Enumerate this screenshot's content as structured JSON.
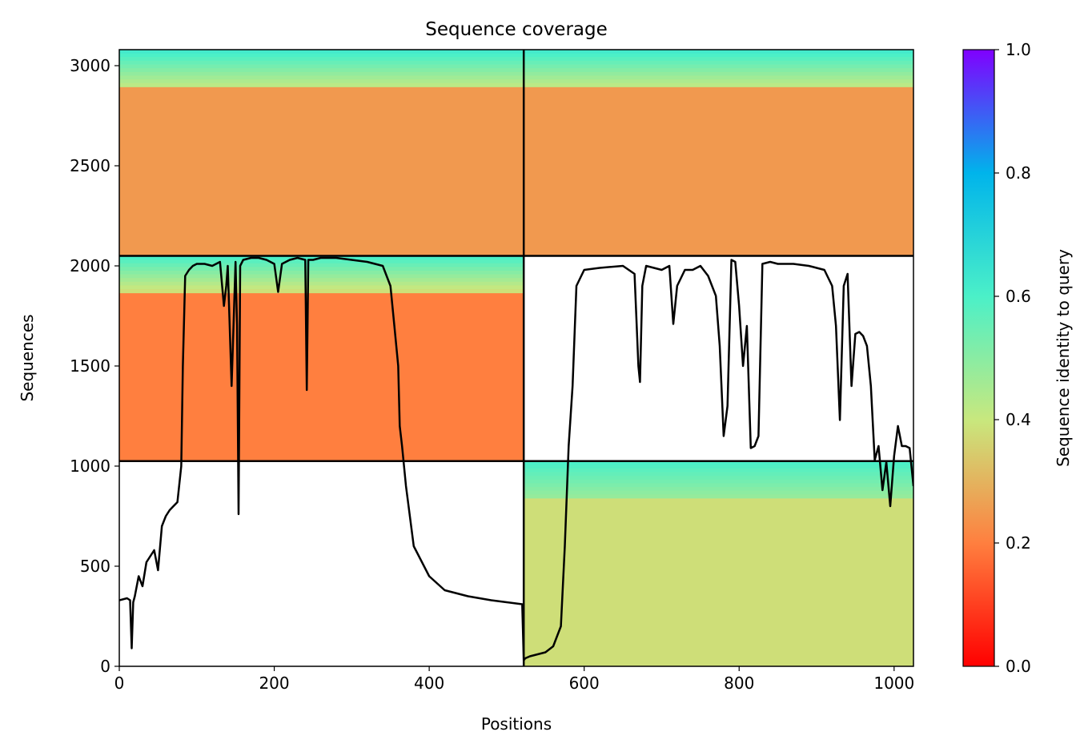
{
  "chart_data": {
    "type": "heatmap",
    "title": "Sequence coverage",
    "xlabel": "Positions",
    "ylabel": "Sequences",
    "xlim": [
      0,
      1025
    ],
    "ylim": [
      0,
      3080
    ],
    "xticks": [
      0,
      200,
      400,
      600,
      800,
      1000
    ],
    "yticks": [
      0,
      500,
      1000,
      1500,
      2000,
      2500,
      3000
    ],
    "colorbar": {
      "label": "Sequence identity to query",
      "colormap": "rainbow_r",
      "range": [
        0.0,
        1.0
      ],
      "ticks": [
        0.0,
        0.2,
        0.4,
        0.6,
        0.8,
        1.0
      ],
      "tick_labels": [
        "0.0",
        "0.2",
        "0.4",
        "0.6",
        "0.8",
        "1.0"
      ],
      "stops": [
        "#ff0000",
        "#ff7f3f",
        "#c8e87e",
        "#4bf0c8",
        "#00b4eb",
        "#8000ff"
      ]
    },
    "block_boundaries": {
      "x_chain_break": 522,
      "y_breaks": [
        1025,
        2050
      ]
    },
    "coverage_blocks": [
      {
        "x": [
          0,
          522
        ],
        "y": [
          2050,
          3080
        ],
        "identity": 0.25,
        "top_identity": 0.62
      },
      {
        "x": [
          522,
          1025
        ],
        "y": [
          2050,
          3080
        ],
        "identity": 0.25,
        "top_identity": 0.62
      },
      {
        "x": [
          0,
          522
        ],
        "y": [
          1025,
          2050
        ],
        "identity": 0.2,
        "top_identity": 0.6
      },
      {
        "x": [
          522,
          1025
        ],
        "y": [
          0,
          1025
        ],
        "identity": 0.38,
        "top_identity": 0.6
      }
    ],
    "series": [
      {
        "type": "line",
        "color": "#000000",
        "x": [
          0,
          10,
          14,
          16,
          18,
          20,
          25,
          30,
          35,
          45,
          50,
          55,
          60,
          65,
          70,
          75,
          80,
          82,
          85,
          90,
          95,
          100,
          110,
          120,
          130,
          135,
          138,
          140,
          145,
          150,
          152,
          154,
          156,
          160,
          170,
          180,
          190,
          200,
          205,
          210,
          220,
          230,
          240,
          242,
          244,
          250,
          260,
          280,
          300,
          320,
          340,
          350,
          355,
          360,
          362,
          365,
          370,
          380,
          400,
          420,
          450,
          480,
          500,
          520,
          522,
          524,
          530,
          540,
          550,
          560,
          570,
          575,
          580,
          585,
          590,
          600,
          620,
          650,
          665,
          670,
          672,
          675,
          680,
          690,
          700,
          710,
          715,
          720,
          730,
          740,
          750,
          760,
          770,
          775,
          780,
          785,
          790,
          795,
          800,
          805,
          810,
          815,
          820,
          825,
          830,
          840,
          850,
          870,
          890,
          900,
          910,
          920,
          925,
          930,
          935,
          940,
          945,
          950,
          955,
          960,
          965,
          970,
          975,
          980,
          985,
          990,
          995,
          1000,
          1005,
          1010,
          1015,
          1020,
          1025
        ],
        "y": [
          330,
          340,
          330,
          90,
          320,
          350,
          450,
          400,
          520,
          580,
          480,
          700,
          750,
          780,
          800,
          820,
          1000,
          1500,
          1950,
          1980,
          2000,
          2010,
          2010,
          2000,
          2020,
          1800,
          1900,
          2000,
          1400,
          2020,
          1700,
          760,
          2000,
          2030,
          2040,
          2040,
          2030,
          2010,
          1870,
          2010,
          2030,
          2040,
          2030,
          1380,
          2030,
          2030,
          2040,
          2040,
          2030,
          2020,
          2000,
          1900,
          1700,
          1500,
          1200,
          1100,
          900,
          600,
          450,
          380,
          350,
          330,
          320,
          310,
          30,
          40,
          50,
          60,
          70,
          100,
          200,
          600,
          1100,
          1400,
          1900,
          1980,
          1990,
          2000,
          1960,
          1500,
          1420,
          1900,
          2000,
          1990,
          1980,
          2000,
          1710,
          1900,
          1980,
          1980,
          2000,
          1950,
          1850,
          1600,
          1150,
          1300,
          2030,
          2020,
          1800,
          1500,
          1700,
          1090,
          1100,
          1150,
          2010,
          2020,
          2010,
          2010,
          2000,
          1990,
          1980,
          1900,
          1700,
          1230,
          1900,
          1960,
          1400,
          1660,
          1670,
          1650,
          1600,
          1400,
          1030,
          1100,
          880,
          1020,
          800,
          1050,
          1200,
          1100,
          1100,
          1090,
          900
        ]
      }
    ]
  }
}
